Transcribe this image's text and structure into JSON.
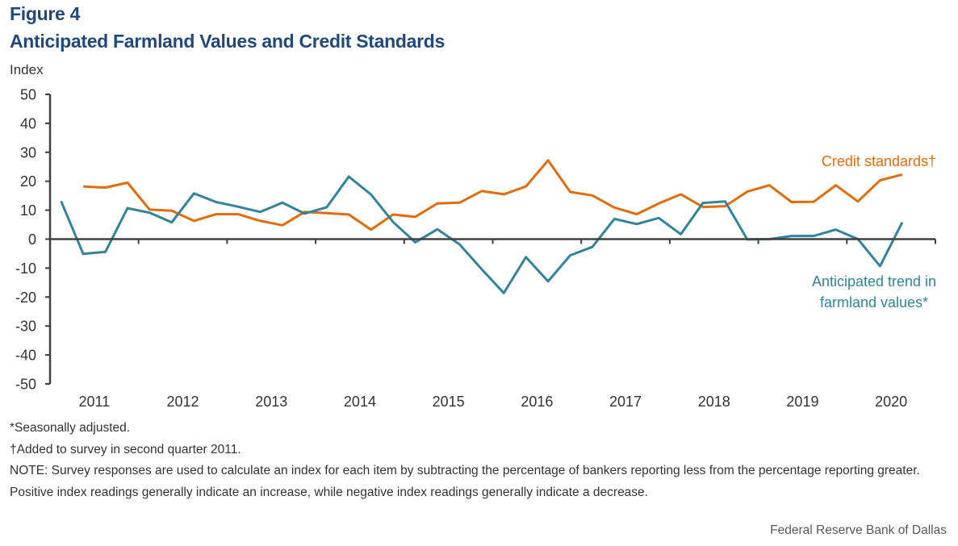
{
  "figure_label": "Figure 4",
  "title": "Anticipated Farmland Values and Credit Standards",
  "y_unit": "Index",
  "notes": [
    "*Seasonally adjusted.",
    "†Added to survey in second quarter 2011.",
    "NOTE: Survey responses are used to calculate an index for each item by subtracting the percentage of bankers reporting less from the percentage reporting greater. Positive index readings generally indicate an increase, while negative index readings generally indicate a decrease."
  ],
  "source": "Federal Reserve Bank of Dallas",
  "chart_data": {
    "type": "line",
    "title": "Anticipated Farmland Values and Credit Standards",
    "xlabel": "",
    "ylabel": "Index",
    "ylim": [
      -50,
      50
    ],
    "yticks": [
      50,
      40,
      30,
      20,
      10,
      0,
      -10,
      -20,
      -30,
      -40,
      -50
    ],
    "x_tick_labels": [
      "2011",
      "2012",
      "2013",
      "2014",
      "2015",
      "2016",
      "2017",
      "2018",
      "2019",
      "2020"
    ],
    "x": [
      "2011Q1",
      "2011Q2",
      "2011Q3",
      "2011Q4",
      "2012Q1",
      "2012Q2",
      "2012Q3",
      "2012Q4",
      "2013Q1",
      "2013Q2",
      "2013Q3",
      "2013Q4",
      "2014Q1",
      "2014Q2",
      "2014Q3",
      "2014Q4",
      "2015Q1",
      "2015Q2",
      "2015Q3",
      "2015Q4",
      "2016Q1",
      "2016Q2",
      "2016Q3",
      "2016Q4",
      "2017Q1",
      "2017Q2",
      "2017Q3",
      "2017Q4",
      "2018Q1",
      "2018Q2",
      "2018Q3",
      "2018Q4",
      "2019Q1",
      "2019Q2",
      "2019Q3",
      "2019Q4",
      "2020Q1",
      "2020Q2",
      "2020Q3"
    ],
    "grid": false,
    "series": [
      {
        "name": "Credit standards†",
        "color": "#E36C0A",
        "values": [
          null,
          18.2,
          17.8,
          19.5,
          10.2,
          9.8,
          6.3,
          8.6,
          8.6,
          6.3,
          4.8,
          9.4,
          9.0,
          8.5,
          3.3,
          8.5,
          7.7,
          12.3,
          12.6,
          16.6,
          15.5,
          18.2,
          27.2,
          16.3,
          15.1,
          10.9,
          8.6,
          12.3,
          15.5,
          11.1,
          11.4,
          16.4,
          18.6,
          12.8,
          12.9,
          18.6,
          13.0,
          20.3,
          22.3
        ]
      },
      {
        "name": "Anticipated trend in farmland values*",
        "color": "#31849B",
        "values": [
          13.1,
          -5.1,
          -4.4,
          10.7,
          9.1,
          5.8,
          15.8,
          12.8,
          11.2,
          9.4,
          12.6,
          8.8,
          11.0,
          21.6,
          15.4,
          5.9,
          -1.1,
          3.4,
          -1.8,
          -10.4,
          -18.6,
          -6.2,
          -14.6,
          -5.6,
          -2.7,
          7.0,
          5.2,
          7.3,
          1.7,
          12.5,
          13.0,
          -0.1,
          0.0,
          1.1,
          1.1,
          3.3,
          0.0,
          -9.3,
          5.8
        ]
      }
    ],
    "annotations": [
      {
        "series": 0,
        "text": "Credit standards†",
        "placement": "upper-right, above line end"
      },
      {
        "series": 1,
        "text_lines": [
          "Anticipated trend in",
          "farmland values*"
        ],
        "placement": "lower-right, below line end"
      }
    ]
  }
}
